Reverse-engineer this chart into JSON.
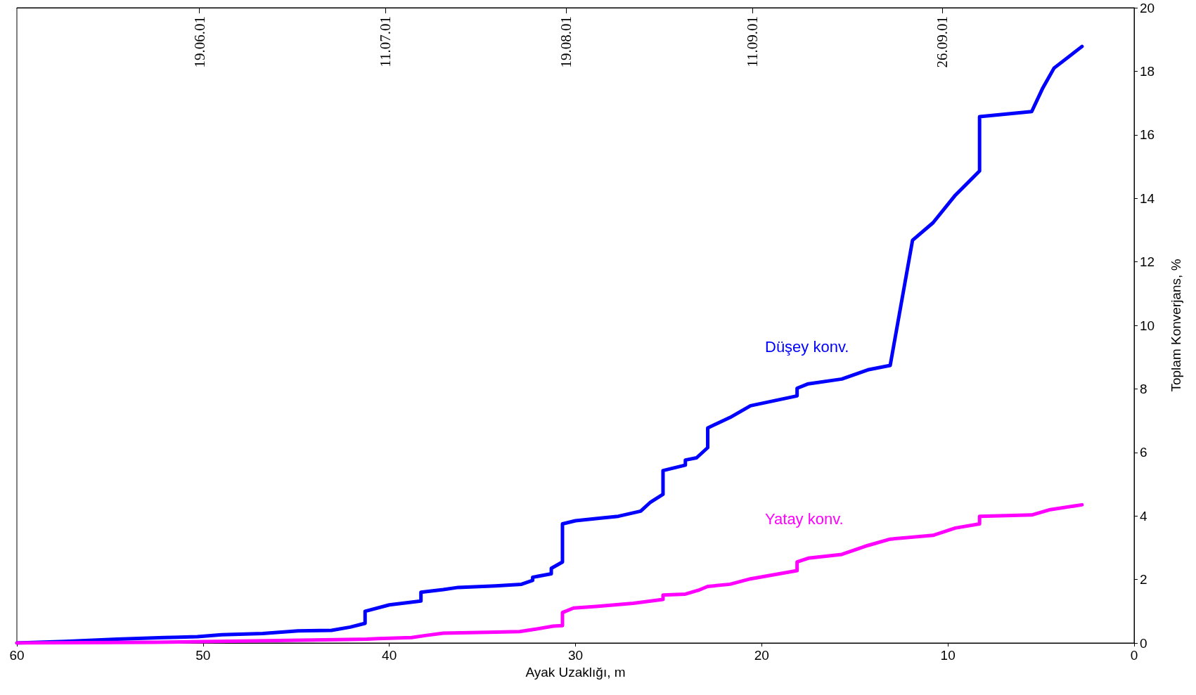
{
  "chart_data": {
    "type": "line",
    "xlabel": "Ayak Uzaklığı, m",
    "y2label": "Toplam Konverjans, %",
    "marker": "none",
    "line_style": "solid",
    "grid": false,
    "legend": false,
    "xlim": [
      60,
      0
    ],
    "xticks": [
      60,
      50,
      40,
      30,
      20,
      10,
      0
    ],
    "y2lim": [
      0,
      20
    ],
    "y2ticks": [
      0,
      2,
      4,
      6,
      8,
      10,
      12,
      14,
      16,
      18,
      20
    ],
    "ref_lines": [
      {
        "axis": "x",
        "value": 50.2,
        "label": "19.06.01"
      },
      {
        "axis": "x",
        "value": 40.2,
        "label": "11.07.01"
      },
      {
        "axis": "x",
        "value": 30.5,
        "label": "19.08.01"
      },
      {
        "axis": "x",
        "value": 20.5,
        "label": "11.09.01"
      },
      {
        "axis": "x",
        "value": 10.3,
        "label": "26.09.01"
      }
    ],
    "series": [
      {
        "name": "Düşey konv.",
        "color": "#0000ff",
        "axis": "y2",
        "x": [
          60,
          57.4,
          54.6,
          52.1,
          50.3,
          49,
          46.8,
          44.9,
          43.1,
          42.1,
          41.3,
          41.3,
          40,
          38.3,
          38.3,
          37.1,
          36.3,
          34.3,
          32.9,
          32.3,
          32.3,
          31.3,
          31.3,
          30.7,
          30.7,
          30,
          28.55,
          27.7,
          26.5,
          26,
          25.3,
          25.3,
          24.1,
          24.1,
          23.5,
          22.9,
          22.9,
          21.7,
          20.6,
          18.1,
          18.1,
          17.5,
          15.7,
          14.3,
          13.1,
          11.9,
          10.8,
          9.6,
          8.3,
          8.3,
          5.5,
          4.9,
          4.3,
          2.8
        ],
        "values": [
          0,
          0.05,
          0.12,
          0.17,
          0.2,
          0.26,
          0.3,
          0.38,
          0.4,
          0.5,
          0.62,
          1.0,
          1.2,
          1.32,
          1.6,
          1.68,
          1.75,
          1.8,
          1.85,
          1.97,
          2.07,
          2.18,
          2.35,
          2.55,
          3.75,
          3.85,
          3.94,
          3.99,
          4.15,
          4.42,
          4.68,
          5.43,
          5.6,
          5.76,
          5.83,
          6.15,
          6.77,
          7.1,
          7.47,
          7.78,
          8.02,
          8.16,
          8.31,
          8.6,
          8.74,
          12.68,
          13.23,
          14.1,
          14.86,
          16.57,
          16.73,
          17.48,
          18.1,
          18.78
        ]
      },
      {
        "name": "Yatay konv.",
        "color": "#ff00ff",
        "axis": "y2",
        "x": [
          60,
          52.7,
          46.6,
          41.2,
          40.6,
          38.8,
          38,
          37.1,
          34.7,
          33,
          32.2,
          31.2,
          30.7,
          30.7,
          30.1,
          28.9,
          26.9,
          25.3,
          25.3,
          24.1,
          23.4,
          22.9,
          21.7,
          20.6,
          18.1,
          18.1,
          17.5,
          15.7,
          14.3,
          13.1,
          10.8,
          9.6,
          8.3,
          8.3,
          5.5,
          4.5,
          2.8
        ],
        "values": [
          0,
          0.02,
          0.07,
          0.12,
          0.14,
          0.17,
          0.24,
          0.31,
          0.34,
          0.36,
          0.43,
          0.53,
          0.55,
          0.96,
          1.1,
          1.15,
          1.25,
          1.37,
          1.51,
          1.54,
          1.66,
          1.78,
          1.85,
          2.02,
          2.28,
          2.55,
          2.67,
          2.79,
          3.07,
          3.27,
          3.39,
          3.62,
          3.75,
          3.99,
          4.03,
          4.2,
          4.35
        ]
      }
    ]
  }
}
